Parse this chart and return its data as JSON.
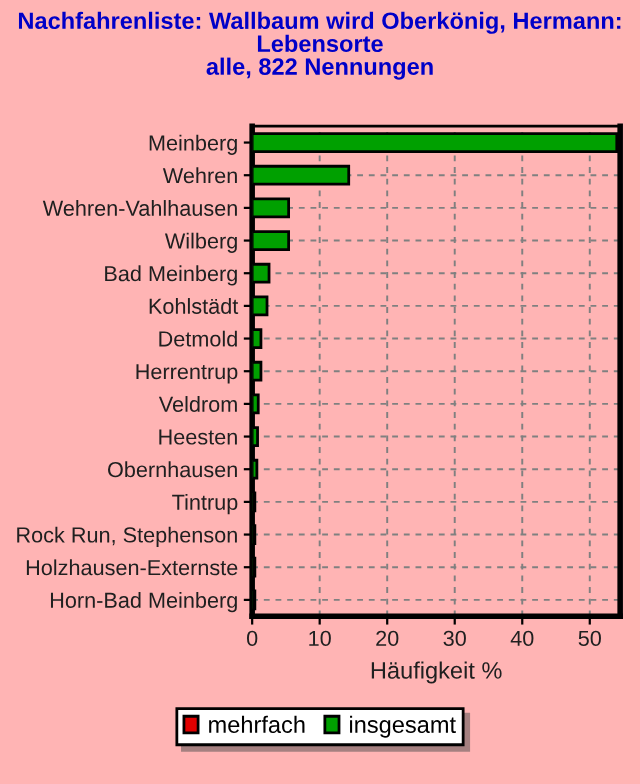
{
  "chart_data": {
    "type": "bar",
    "orientation": "horizontal",
    "title": "Nachfahrenliste: Wallbaum wird Oberkönig, Hermann:\nLebensorte\nalle, 822 Nennungen",
    "xlabel": "Häufigkeit %",
    "categories": [
      "Meinberg",
      "Wehren",
      "Wehren-Vahlhausen",
      "Wilberg",
      "Bad Meinberg",
      "Kohlstädt",
      "Detmold",
      "Herrentrup",
      "Veldrom",
      "Heesten",
      "Obernhausen",
      "Tintrup",
      "Rock Run, Stephenson",
      "Holzhausen-Externste",
      "Horn-Bad Meinberg"
    ],
    "series": [
      {
        "name": "mehrfach",
        "color": "#e00000",
        "values": [
          0,
          0,
          0,
          0,
          0,
          0,
          0,
          0,
          0,
          0,
          0,
          0,
          0,
          0,
          0
        ]
      },
      {
        "name": "insgesamt",
        "color": "#00a000",
        "values": [
          54,
          14.3,
          5.4,
          5.4,
          2.5,
          2.2,
          1.3,
          1.3,
          0.9,
          0.8,
          0.7,
          0.4,
          0.4,
          0.4,
          0.4
        ]
      }
    ],
    "xlim": [
      0,
      54.5
    ],
    "xticks": [
      0,
      10,
      20,
      30,
      40,
      50
    ],
    "grid": true,
    "legend": "bottom"
  }
}
